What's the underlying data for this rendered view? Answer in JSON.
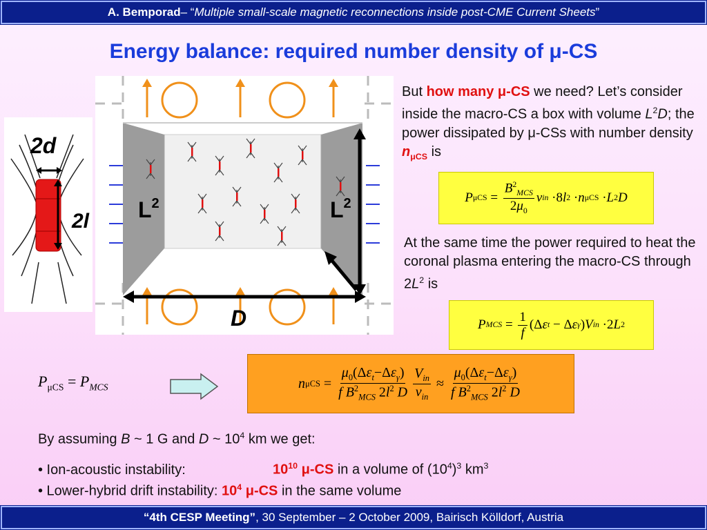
{
  "header": {
    "author": "A. Bemporad",
    "sep": " – “",
    "subtitle": "Multiple small-scale magnetic reconnections inside post-CME Current Sheets",
    "close": "”"
  },
  "title": "Energy balance: required number density of μ-CS",
  "figure": {
    "left_labels": {
      "d": "2d",
      "l": "2l"
    },
    "box_labels": {
      "l2_left": "L",
      "l2_right": "L",
      "sup": "2",
      "d": "D"
    }
  },
  "para1": {
    "pre": "But ",
    "highlight": "how many μ-CS",
    "post1": " we need? Let’s consider inside the macro-CS a box with volume ",
    "vol": "L",
    "vol_sup": "2",
    "vol_d": "D",
    "post2": "; the power dissipated by μ-CSs with number density ",
    "n": "n",
    "n_sub": "μCS",
    "post3": " is"
  },
  "para2": {
    "text": "At the same time the power required to heat the coronal plasma entering the macro-CS through 2",
    "l": "L",
    "sup": "2",
    "end": " is"
  },
  "bottom": {
    "assume_pre": "By assuming ",
    "B": "B",
    "assume_mid1": " ~ 1 G and ",
    "D": "D",
    "assume_mid2": " ~ 10",
    "exp": "4",
    "assume_end": " km we get:",
    "b1_label": "• Ion-acoustic instability:",
    "b1_val": "10",
    "b1_exp": "10",
    "b1_cs": " μ-CS",
    "b1_rest": " in a volume of (10",
    "b1_rest_exp": "4",
    "b1_rest2": ")",
    "b1_rest_exp2": "3",
    "b1_rest3": " km",
    "b1_rest_exp3": "3",
    "b2_label": "• Lower-hybrid drift instability:",
    "b2_val": "10",
    "b2_exp": "4",
    "b2_cs": " μ-CS",
    "b2_rest": " in the same volume"
  },
  "footer": {
    "meeting": "“4th CESP Meeting”",
    "rest": ", 30 September – 2 October 2009, Bairisch Kölldorf, Austria"
  }
}
